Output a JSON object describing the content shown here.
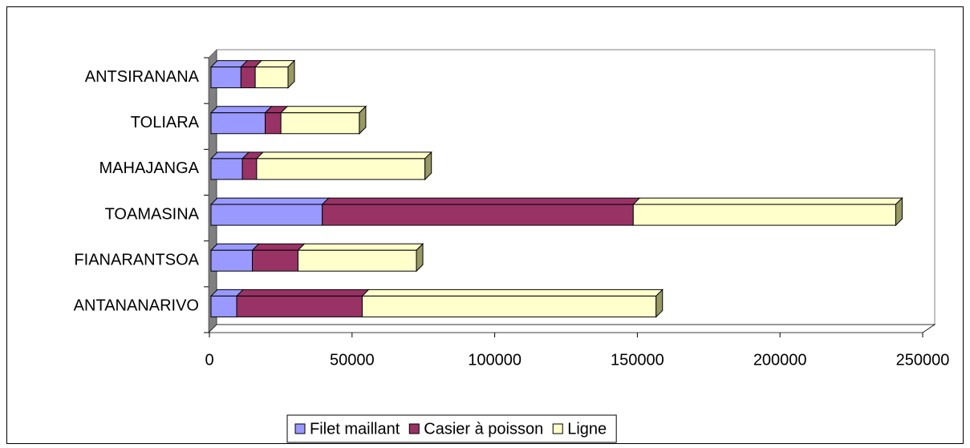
{
  "chart_data": {
    "type": "bar3d_stacked_horizontal",
    "categories": [
      "ANTANANARIVO",
      "FIANARANTSOA",
      "TOAMASINA",
      "MAHAJANGA",
      "TOLIARA",
      "ANTSIRANANA"
    ],
    "series": [
      {
        "name": "Filet maillant",
        "color": "#9999ff",
        "values": [
          9000,
          14500,
          39000,
          11000,
          19000,
          10500
        ]
      },
      {
        "name": "Casier à poisson",
        "color": "#993366",
        "values": [
          44000,
          16000,
          109000,
          5000,
          5500,
          5000
        ]
      },
      {
        "name": "Ligne",
        "color": "#ffffcc",
        "values": [
          103000,
          41500,
          92000,
          59000,
          27500,
          11500
        ]
      }
    ],
    "xlim": [
      0,
      250000
    ],
    "xticks": [
      0,
      50000,
      100000,
      150000,
      200000,
      250000
    ],
    "legend": "bottom"
  }
}
